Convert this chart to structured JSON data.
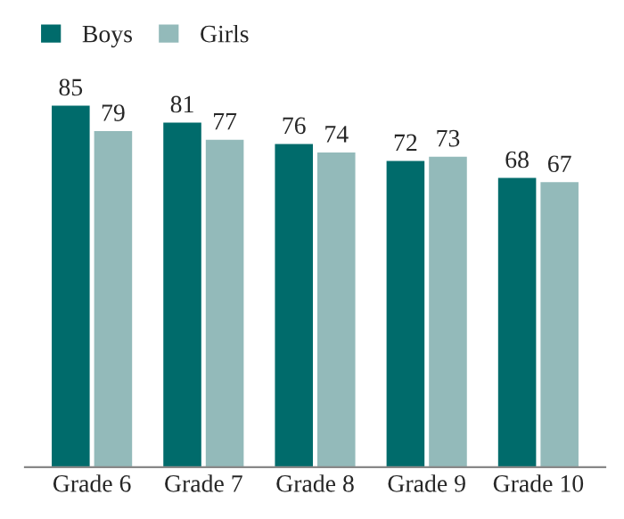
{
  "chart_data": {
    "type": "bar",
    "categories": [
      "Grade 6",
      "Grade 7",
      "Grade 8",
      "Grade 9",
      "Grade 10"
    ],
    "series": [
      {
        "name": "Boys",
        "color": "#006b6b",
        "values": [
          85,
          81,
          76,
          72,
          68
        ]
      },
      {
        "name": "Girls",
        "color": "#93baba",
        "values": [
          79,
          77,
          74,
          73,
          67
        ]
      }
    ],
    "data_labels": true,
    "legend": "top left",
    "grid": false
  }
}
